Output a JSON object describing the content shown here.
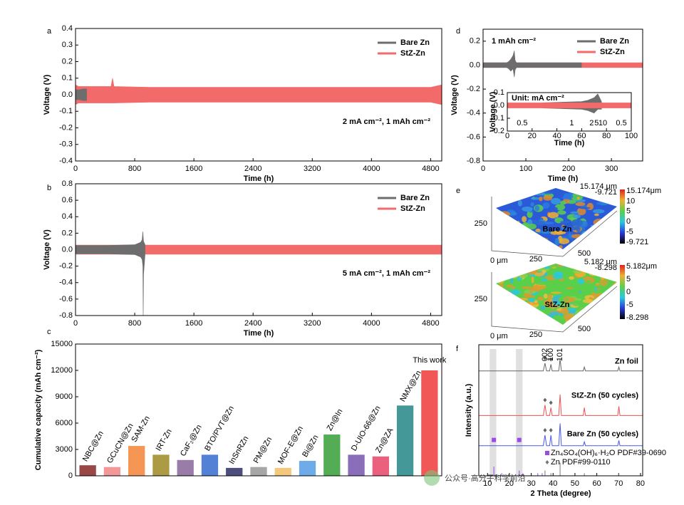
{
  "chart_data": [
    {
      "type": "band",
      "panel": "a",
      "xlabel": "Time (h)",
      "ylabel": "Voltage (V)",
      "annotation": "2 mA cm⁻², 1 mAh cm⁻²",
      "legend": "upper right",
      "xlim": [
        0,
        4950
      ],
      "xticks": [
        0,
        800,
        1600,
        2400,
        3200,
        4000,
        4800
      ],
      "ylim": [
        -0.4,
        0.4
      ],
      "yticks": [
        -0.4,
        -0.3,
        -0.2,
        -0.1,
        {
          "value": 0,
          "label": "0.0"
        },
        0.1,
        0.2,
        0.3,
        0.4
      ],
      "series": [
        {
          "name": "Bare Zn",
          "color": "#6d6d6d",
          "x": [
            0,
            50,
            100,
            150
          ],
          "upper": [
            0.03,
            0.03,
            0.035,
            0.035
          ],
          "lower": [
            -0.03,
            -0.03,
            -0.035,
            -0.035
          ]
        },
        {
          "name": "StZ-Zn",
          "color": "#f26a6a",
          "x": [
            0,
            40,
            480,
            500,
            520,
            1000,
            4800,
            4950
          ],
          "upper": [
            0.06,
            0.05,
            0.05,
            0.1,
            0.05,
            0.045,
            0.045,
            0.06
          ],
          "lower": [
            -0.06,
            -0.05,
            -0.05,
            -0.05,
            -0.05,
            -0.045,
            -0.045,
            -0.06
          ]
        }
      ]
    },
    {
      "type": "band",
      "panel": "b",
      "xlabel": "Time (h)",
      "ylabel": "Voltage (V)",
      "annotation": "5 mA cm⁻², 1 mAh cm⁻²",
      "legend": "upper right",
      "xlim": [
        0,
        4950
      ],
      "xticks": [
        0,
        800,
        1600,
        2400,
        3200,
        4000,
        4800
      ],
      "ylim": [
        -0.8,
        0.8
      ],
      "yticks": [
        -0.8,
        -0.6,
        -0.4,
        -0.2,
        {
          "value": 0,
          "label": "0.0"
        },
        0.2,
        0.4,
        0.6,
        0.8
      ],
      "series": [
        {
          "name": "Bare Zn",
          "color": "#6d6d6d",
          "x": [
            0,
            400,
            800,
            880,
            900,
            910,
            915,
            920,
            940
          ],
          "upper": [
            0.05,
            0.05,
            0.06,
            0.09,
            0.12,
            0.22,
            0.15,
            0.1,
            0.06
          ],
          "lower": [
            -0.05,
            -0.05,
            -0.06,
            -0.09,
            -0.12,
            -0.2,
            -0.8,
            -0.3,
            -0.06
          ]
        },
        {
          "name": "StZ-Zn",
          "color": "#f26a6a",
          "x": [
            0,
            4950
          ],
          "upper": [
            0.055,
            0.055
          ],
          "lower": [
            -0.055,
            -0.055
          ]
        }
      ]
    },
    {
      "type": "bar",
      "panel": "c",
      "ylabel": "Cumulative capacity (mAh cm⁻²)",
      "categories": [
        "NBC@Zn",
        "GCuCN@Zn",
        "SAM-Zn",
        "IRT-Zn",
        "CaF₂@Zn",
        "BTO/PVT@Zn",
        "InSnRZn",
        "PM@Zn",
        "MOF-E@Zn",
        "Bi@Zn",
        "Zn@In",
        "D-UIO-66@Zn",
        "Zn@ZA",
        "NMX@Zn",
        "This work"
      ],
      "values": [
        1200,
        1000,
        3400,
        2400,
        1800,
        2400,
        900,
        1000,
        900,
        1700,
        4700,
        2400,
        2200,
        8000,
        12000
      ],
      "colors": [
        "#8b2d2d",
        "#f08a8a",
        "#f4883c",
        "#a08c2a",
        "#8b6a9b",
        "#3a6fd0",
        "#34346c",
        "#9a9a9a",
        "#f4c26a",
        "#5aa0e6",
        "#3ca03c",
        "#7a5ab0",
        "#e84a6a",
        "#2a8a8a",
        "#f04040"
      ],
      "ylim": [
        0,
        15000
      ],
      "yticks": [
        0,
        3000,
        6000,
        9000,
        12000,
        15000
      ]
    },
    {
      "type": "band",
      "panel": "d",
      "xlabel": "Time (h)",
      "ylabel": "Voltage (V)",
      "annotation": "1 mAh cm⁻²",
      "legend": "upper right",
      "xlim": [
        0,
        373
      ],
      "xticks": [
        0,
        100,
        200,
        300
      ],
      "ylim": [
        -0.8,
        0.3
      ],
      "yticks": [
        -0.8,
        -0.6,
        -0.4,
        -0.2,
        {
          "value": 0,
          "label": "0.0"
        },
        0.2
      ],
      "series": [
        {
          "name": "Bare Zn",
          "color": "#6d6d6d",
          "x": [
            0,
            55,
            60,
            65,
            70,
            73,
            75,
            78,
            230
          ],
          "upper": [
            0.02,
            0.02,
            0.03,
            0.05,
            0.08,
            0.12,
            0.04,
            0.02,
            0.02
          ],
          "lower": [
            -0.02,
            -0.02,
            -0.03,
            -0.05,
            -0.03,
            -0.1,
            -0.04,
            -0.02,
            -0.02
          ]
        },
        {
          "name": "StZ-Zn",
          "color": "#f26a6a",
          "x": [
            0,
            373
          ],
          "upper": [
            0.02,
            0.02
          ],
          "lower": [
            -0.02,
            -0.02
          ]
        }
      ],
      "inset": {
        "type": "band",
        "xlabel": "Time (h)",
        "ylabel": "Voltage (V)",
        "note": "Unit: mA cm⁻²",
        "xlim": [
          0,
          100
        ],
        "xticks": [
          0,
          20,
          40,
          60,
          80,
          100
        ],
        "ylim": [
          -0.2,
          0.1
        ],
        "yticks": [
          -0.2,
          -0.1,
          {
            "value": 0,
            "label": "0.0"
          },
          0.1
        ],
        "series": [
          {
            "color": "#f26a6a",
            "x": [
              0,
              100
            ],
            "upper": [
              0.02,
              0.02
            ],
            "lower": [
              -0.02,
              -0.02
            ]
          },
          {
            "color": "#6d6d6d",
            "x": [
              28,
              60,
              65,
              70,
              73,
              76
            ],
            "upper": [
              0.02,
              0.03,
              0.04,
              0.06,
              0.09,
              0.03
            ],
            "lower": [
              -0.02,
              -0.03,
              -0.04,
              -0.06,
              -0.03,
              -0.03
            ]
          }
        ],
        "rate_labels": {
          "x": [
            12,
            52,
            68,
            72,
            77,
            92
          ],
          "labels": [
            "0.5",
            "1",
            "2",
            "5",
            "10",
            "0.5"
          ]
        }
      }
    },
    {
      "type": "surface-map",
      "panel": "e",
      "maps": [
        {
          "label": "Bare Zn",
          "range_labels": [
            "15.174 μm",
            "-9.721"
          ],
          "colorbar_labels": [
            "15.174μm",
            "10",
            "5",
            "0",
            "-5",
            "-9.721"
          ],
          "axis_labels": [
            "250",
            "0 μm",
            "250",
            "500"
          ]
        },
        {
          "label": "StZ-Zn",
          "range_labels": [
            "5.182 μm",
            "-8.298"
          ],
          "colorbar_labels": [
            "5.182μm",
            "5",
            "0",
            "-5",
            "-8.298"
          ],
          "axis_labels": [
            "250",
            "0 μm",
            "250",
            "500"
          ]
        }
      ]
    },
    {
      "type": "xrd",
      "panel": "f",
      "xlabel": "2 Theta (degree)",
      "ylabel": "Intensity (a.u.)",
      "xlim": [
        6,
        81
      ],
      "xticks": [
        10,
        20,
        30,
        40,
        50,
        60,
        70,
        80
      ],
      "ylim": [
        0,
        100
      ],
      "shaded": [
        [
          11,
          14
        ],
        [
          23,
          26
        ]
      ],
      "peaks": {
        "x": [
          36.3,
          39,
          43.2
        ],
        "labels": [
          "002",
          "100",
          "101"
        ]
      },
      "series": [
        {
          "name": "Zn foil",
          "color": "#666666",
          "x": [
            6,
            35.5,
            36.3,
            37,
            38.4,
            39,
            39.6,
            42.6,
            43.2,
            43.8,
            53.8,
            54.3,
            54.8,
            69.6,
            70.1,
            70.6,
            81
          ],
          "values": [
            80,
            80,
            86,
            80,
            80,
            85,
            80,
            80,
            89,
            80,
            80,
            83,
            80,
            80,
            83,
            80,
            80
          ]
        },
        {
          "name": "StZ-Zn (50 cycles)",
          "color": "#f05050",
          "x": [
            6,
            35.5,
            36.3,
            37,
            38.4,
            39,
            39.6,
            42.6,
            43.2,
            43.8,
            53.8,
            54.3,
            54.8,
            69.6,
            70.1,
            70.6,
            81
          ],
          "values": [
            46,
            46,
            54,
            46,
            46,
            52,
            46,
            46,
            62,
            46,
            46,
            52,
            46,
            46,
            53,
            46,
            46
          ]
        },
        {
          "name": "Bare Zn (50 cycles)",
          "color": "#4a5ae8",
          "x": [
            6,
            35.5,
            36.3,
            37,
            38.4,
            39,
            39.6,
            42.6,
            43.2,
            43.8,
            53.8,
            54.3,
            54.8,
            69.6,
            70.1,
            70.6,
            81
          ],
          "values": [
            23,
            23,
            31,
            23,
            23,
            31,
            23,
            23,
            40,
            23,
            23,
            26,
            23,
            23,
            27,
            23,
            23
          ],
          "phase_marker_x": [
            12.9,
            24.5
          ]
        }
      ],
      "references": [
        {
          "name": "Zn₄SO₄(OH)₆·H₂O PDF#39-0690",
          "color": "#9b4ae8",
          "x": [
            12.9,
            16.5,
            24.5,
            26.2,
            33,
            35
          ],
          "values": [
            7,
            2,
            4,
            2,
            2,
            2
          ]
        },
        {
          "name": "Zn PDF#99-0110",
          "color": "#777777",
          "x": [
            36.3,
            39,
            43.2,
            54.3,
            70.1
          ],
          "values": [
            4,
            2,
            10,
            2,
            2
          ]
        }
      ]
    }
  ],
  "watermark": "公众号·高分子科学前沿"
}
